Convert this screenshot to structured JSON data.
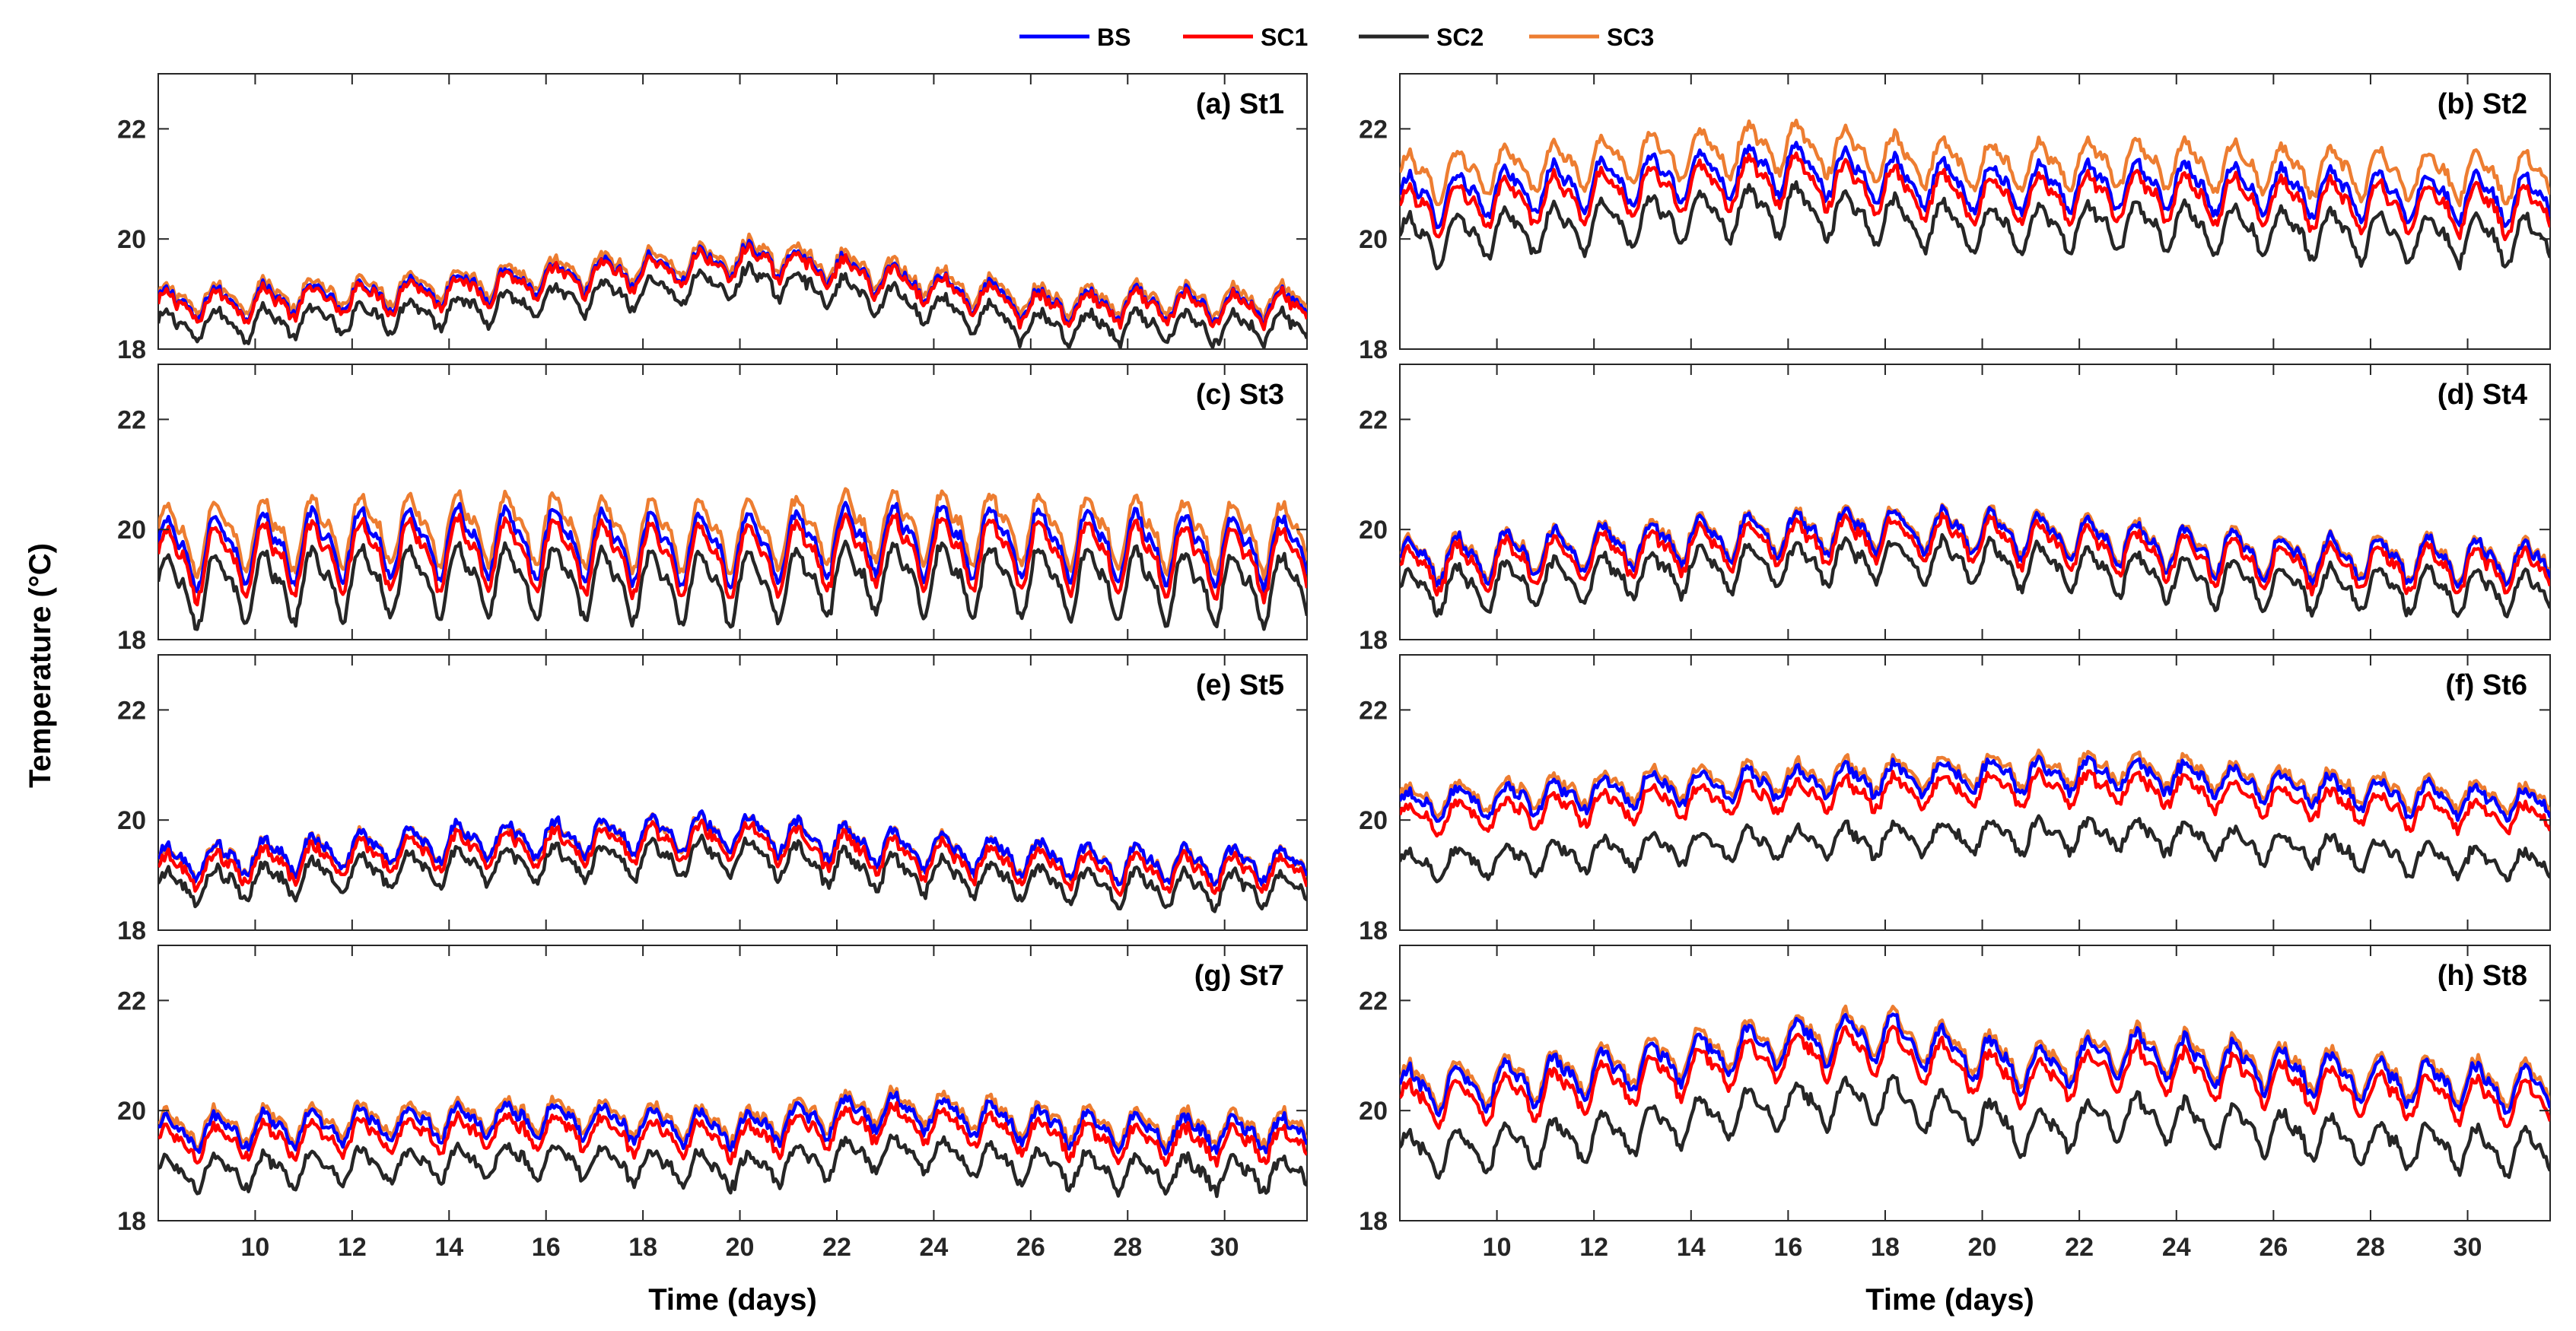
{
  "chart_data": {
    "type": "line",
    "legend": {
      "placement": "top-center",
      "entries": [
        "BS",
        "SC1",
        "SC2",
        "SC3"
      ]
    },
    "ylabel": "Temperature (°C)",
    "xlabel": "Time (days)",
    "xlim": [
      8,
      31.7
    ],
    "ylim": [
      18,
      23
    ],
    "xticks": [
      10,
      12,
      14,
      16,
      18,
      20,
      22,
      24,
      26,
      28,
      30
    ],
    "yticks": [
      18,
      20,
      22
    ],
    "series_colors": {
      "BS": "#0000ff",
      "SC1": "#ff0000",
      "SC2": "#262626",
      "SC3": "#ed7d31"
    },
    "panels": [
      {
        "title": "(a) St1",
        "base": 18.75,
        "trend": [
          [
            8,
            0
          ],
          [
            12,
            0.15
          ],
          [
            16,
            0.45
          ],
          [
            20.5,
            0.85
          ],
          [
            23,
            0.5
          ],
          [
            26,
            0
          ],
          [
            32,
            0
          ]
        ],
        "amp": 0.35,
        "offsets": {
          "BS": 0.05,
          "SC1": 0.0,
          "SC2": -0.35,
          "SC3": 0.15
        }
      },
      {
        "title": "(b) St2",
        "base": 20.5,
        "trend": [
          [
            8,
            0
          ],
          [
            12,
            0.3
          ],
          [
            16,
            0.6
          ],
          [
            20,
            0.2
          ],
          [
            23,
            0.3
          ],
          [
            28,
            0.1
          ],
          [
            32,
            0
          ]
        ],
        "amp": 0.55,
        "offsets": {
          "BS": 0.2,
          "SC1": 0.0,
          "SC2": -0.55,
          "SC3": 0.6
        }
      },
      {
        "title": "(c) St3",
        "base": 19.3,
        "trend": [
          [
            8,
            0
          ],
          [
            14,
            0.2
          ],
          [
            20,
            0.05
          ],
          [
            23,
            0.25
          ],
          [
            32,
            0
          ]
        ],
        "amp": 0.8,
        "offsets": {
          "BS": 0.3,
          "SC1": 0.1,
          "SC2": -0.4,
          "SC3": 0.55
        }
      },
      {
        "title": "(d) St4",
        "base": 19.2,
        "trend": [
          [
            8,
            0
          ],
          [
            14,
            0.4
          ],
          [
            18,
            0.6
          ],
          [
            21,
            0.5
          ],
          [
            26,
            0.1
          ],
          [
            32,
            0
          ]
        ],
        "amp": 0.5,
        "offsets": {
          "BS": 0.2,
          "SC1": 0.05,
          "SC2": -0.35,
          "SC3": 0.25
        }
      },
      {
        "title": "(e) St5",
        "base": 19.0,
        "trend": [
          [
            8,
            0
          ],
          [
            14,
            0.4
          ],
          [
            20,
            0.6
          ],
          [
            23,
            0.3
          ],
          [
            28,
            0
          ],
          [
            32,
            0
          ]
        ],
        "amp": 0.4,
        "offsets": {
          "BS": 0.2,
          "SC1": 0.05,
          "SC2": -0.25,
          "SC3": 0.2
        }
      },
      {
        "title": "(f) St6",
        "base": 20.0,
        "trend": [
          [
            8,
            0
          ],
          [
            14,
            0.35
          ],
          [
            18,
            0.5
          ],
          [
            23,
            0.6
          ],
          [
            28,
            0.2
          ],
          [
            32,
            0
          ]
        ],
        "amp": 0.35,
        "offsets": {
          "BS": 0.25,
          "SC1": 0.0,
          "SC2": -0.85,
          "SC3": 0.35
        }
      },
      {
        "title": "(g) St7",
        "base": 19.4,
        "trend": [
          [
            8,
            0
          ],
          [
            16,
            0.25
          ],
          [
            20,
            0.05
          ],
          [
            23,
            0.4
          ],
          [
            28,
            0
          ],
          [
            32,
            0
          ]
        ],
        "amp": 0.38,
        "offsets": {
          "BS": 0.2,
          "SC1": 0.0,
          "SC2": -0.55,
          "SC3": 0.3
        }
      },
      {
        "title": "(h) St8",
        "base": 20.1,
        "trend": [
          [
            8,
            0
          ],
          [
            12,
            0.3
          ],
          [
            16,
            0.9
          ],
          [
            18,
            1.0
          ],
          [
            21,
            0.4
          ],
          [
            23,
            0.7
          ],
          [
            28,
            0.2
          ],
          [
            32,
            0
          ]
        ],
        "amp": 0.5,
        "offsets": {
          "BS": 0.25,
          "SC1": 0.0,
          "SC2": -0.9,
          "SC3": 0.35
        }
      }
    ]
  }
}
